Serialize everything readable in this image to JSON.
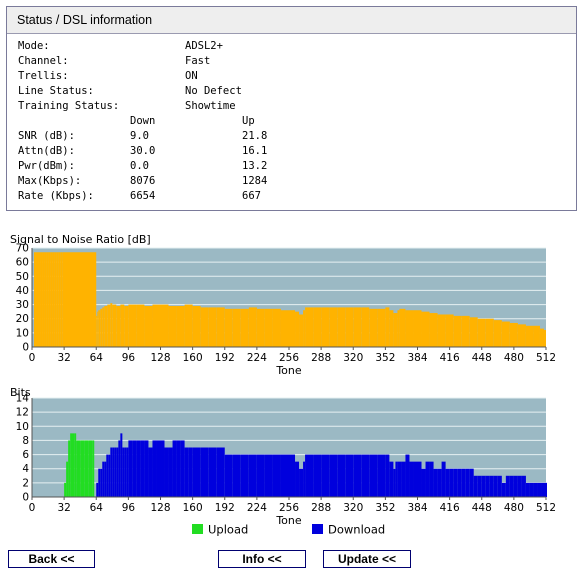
{
  "panel": {
    "title": "Status / DSL information",
    "line_info": [
      {
        "label": "Mode:",
        "value": "ADSL2+"
      },
      {
        "label": "Channel:",
        "value": "Fast"
      },
      {
        "label": "Trellis:",
        "value": "ON"
      },
      {
        "label": "Line Status:",
        "value": "No Defect"
      },
      {
        "label": "Training Status:",
        "value": "Showtime"
      }
    ],
    "columns": {
      "down": "Down",
      "up": "Up"
    },
    "metrics": [
      {
        "label": "SNR (dB):",
        "down": "9.0",
        "up": "21.8"
      },
      {
        "label": "Attn(dB):",
        "down": "30.0",
        "up": "16.1"
      },
      {
        "label": "Pwr(dBm):",
        "down": "0.0",
        "up": "13.2"
      },
      {
        "label": "Max(Kbps):",
        "down": "8076",
        "up": "1284"
      },
      {
        "label": "Rate (Kbps):",
        "down": "6654",
        "up": "667"
      }
    ]
  },
  "chart_data": [
    {
      "type": "bar",
      "title": "Signal to Noise Ratio [dB]",
      "xlabel": "Tone",
      "ylabel": "",
      "xlim": [
        0,
        512
      ],
      "ylim": [
        0,
        70
      ],
      "x_ticks": [
        "0",
        "32",
        "64",
        "96",
        "128",
        "160",
        "192",
        "224",
        "256",
        "288",
        "320",
        "352",
        "384",
        "416",
        "448",
        "480",
        "512"
      ],
      "y_ticks": [
        "0",
        "10",
        "20",
        "30",
        "40",
        "50",
        "60",
        "70"
      ],
      "grid": true,
      "colors": {
        "plot_bg": "#9bb9c4",
        "grid": "#e6f0f2",
        "bars": "#ffb300"
      },
      "series": [
        {
          "values": [
            [
              2,
              67
            ],
            [
              4,
              67
            ],
            [
              6,
              67
            ],
            [
              8,
              67
            ],
            [
              10,
              67
            ],
            [
              12,
              67
            ],
            [
              14,
              67
            ],
            [
              16,
              67
            ],
            [
              18,
              67
            ],
            [
              20,
              67
            ],
            [
              22,
              67
            ],
            [
              24,
              67
            ],
            [
              26,
              67
            ],
            [
              28,
              67
            ],
            [
              30,
              67
            ],
            [
              64,
              22
            ],
            [
              65,
              25
            ],
            [
              66,
              26
            ],
            [
              68,
              27
            ],
            [
              70,
              28
            ],
            [
              72,
              29
            ],
            [
              75,
              30
            ],
            [
              78,
              31
            ],
            [
              80,
              30
            ],
            [
              84,
              29
            ],
            [
              88,
              30
            ],
            [
              92,
              29
            ],
            [
              96,
              30
            ],
            [
              104,
              30
            ],
            [
              112,
              29
            ],
            [
              120,
              30
            ],
            [
              128,
              30
            ],
            [
              136,
              29
            ],
            [
              144,
              29
            ],
            [
              152,
              30
            ],
            [
              160,
              29
            ],
            [
              168,
              28
            ],
            [
              176,
              28
            ],
            [
              184,
              28
            ],
            [
              192,
              27
            ],
            [
              200,
              27
            ],
            [
              208,
              27
            ],
            [
              216,
              28
            ],
            [
              224,
              27
            ],
            [
              232,
              27
            ],
            [
              240,
              27
            ],
            [
              248,
              26
            ],
            [
              256,
              26
            ],
            [
              262,
              25
            ],
            [
              266,
              23
            ],
            [
              270,
              26
            ],
            [
              272,
              28
            ],
            [
              280,
              28
            ],
            [
              288,
              28
            ],
            [
              296,
              28
            ],
            [
              304,
              28
            ],
            [
              312,
              28
            ],
            [
              320,
              28
            ],
            [
              328,
              28
            ],
            [
              336,
              27
            ],
            [
              344,
              27
            ],
            [
              352,
              28
            ],
            [
              356,
              26
            ],
            [
              360,
              24
            ],
            [
              364,
              26
            ],
            [
              366,
              27
            ],
            [
              372,
              26
            ],
            [
              380,
              26
            ],
            [
              388,
              25
            ],
            [
              396,
              24
            ],
            [
              404,
              23
            ],
            [
              412,
              23
            ],
            [
              420,
              22
            ],
            [
              428,
              22
            ],
            [
              436,
              21
            ],
            [
              444,
              20
            ],
            [
              452,
              20
            ],
            [
              460,
              19
            ],
            [
              468,
              18
            ],
            [
              476,
              17
            ],
            [
              484,
              16
            ],
            [
              492,
              15
            ],
            [
              500,
              15
            ],
            [
              506,
              13
            ],
            [
              510,
              12
            ]
          ]
        }
      ]
    },
    {
      "type": "bar",
      "title": "Bits",
      "xlabel": "Tone",
      "ylabel": "",
      "xlim": [
        0,
        512
      ],
      "ylim": [
        0,
        14
      ],
      "x_ticks": [
        "0",
        "32",
        "64",
        "96",
        "128",
        "160",
        "192",
        "224",
        "256",
        "288",
        "320",
        "352",
        "384",
        "416",
        "448",
        "480",
        "512"
      ],
      "y_ticks": [
        "0",
        "2",
        "4",
        "6",
        "8",
        "10",
        "12",
        "14"
      ],
      "grid": true,
      "legend": "bottom",
      "colors": {
        "plot_bg": "#9bb9c4",
        "grid": "#e6f0f2"
      },
      "series": [
        {
          "name": "Upload",
          "color": "#22dd22",
          "values": [
            [
              30,
              0
            ],
            [
              32,
              2
            ],
            [
              34,
              5
            ],
            [
              36,
              8
            ],
            [
              38,
              9
            ],
            [
              42,
              9
            ],
            [
              44,
              8
            ],
            [
              48,
              8
            ],
            [
              52,
              8
            ],
            [
              56,
              8
            ],
            [
              60,
              8
            ],
            [
              62,
              0
            ]
          ]
        },
        {
          "name": "Download",
          "color": "#0000dd",
          "values": [
            [
              64,
              2
            ],
            [
              66,
              4
            ],
            [
              68,
              4
            ],
            [
              70,
              5
            ],
            [
              72,
              5
            ],
            [
              74,
              6
            ],
            [
              76,
              6
            ],
            [
              78,
              7
            ],
            [
              80,
              7
            ],
            [
              82,
              7
            ],
            [
              84,
              7
            ],
            [
              86,
              8
            ],
            [
              88,
              9
            ],
            [
              90,
              7
            ],
            [
              92,
              7
            ],
            [
              94,
              7
            ],
            [
              96,
              8
            ],
            [
              100,
              8
            ],
            [
              104,
              8
            ],
            [
              108,
              8
            ],
            [
              112,
              8
            ],
            [
              116,
              7
            ],
            [
              120,
              8
            ],
            [
              124,
              8
            ],
            [
              128,
              8
            ],
            [
              132,
              7
            ],
            [
              136,
              7
            ],
            [
              140,
              8
            ],
            [
              144,
              8
            ],
            [
              148,
              8
            ],
            [
              152,
              7
            ],
            [
              156,
              7
            ],
            [
              160,
              7
            ],
            [
              168,
              7
            ],
            [
              176,
              7
            ],
            [
              184,
              7
            ],
            [
              192,
              6
            ],
            [
              200,
              6
            ],
            [
              208,
              6
            ],
            [
              216,
              6
            ],
            [
              224,
              6
            ],
            [
              232,
              6
            ],
            [
              240,
              6
            ],
            [
              248,
              6
            ],
            [
              256,
              6
            ],
            [
              262,
              5
            ],
            [
              266,
              4
            ],
            [
              270,
              5
            ],
            [
              272,
              6
            ],
            [
              280,
              6
            ],
            [
              288,
              6
            ],
            [
              296,
              6
            ],
            [
              304,
              6
            ],
            [
              312,
              6
            ],
            [
              320,
              6
            ],
            [
              328,
              6
            ],
            [
              336,
              6
            ],
            [
              344,
              6
            ],
            [
              352,
              6
            ],
            [
              356,
              5
            ],
            [
              360,
              4
            ],
            [
              362,
              5
            ],
            [
              364,
              5
            ],
            [
              368,
              5
            ],
            [
              372,
              6
            ],
            [
              376,
              5
            ],
            [
              380,
              5
            ],
            [
              384,
              5
            ],
            [
              388,
              4
            ],
            [
              392,
              5
            ],
            [
              396,
              5
            ],
            [
              400,
              4
            ],
            [
              404,
              4
            ],
            [
              408,
              5
            ],
            [
              412,
              4
            ],
            [
              416,
              4
            ],
            [
              420,
              4
            ],
            [
              424,
              4
            ],
            [
              428,
              4
            ],
            [
              432,
              4
            ],
            [
              436,
              4
            ],
            [
              440,
              3
            ],
            [
              444,
              3
            ],
            [
              448,
              3
            ],
            [
              452,
              3
            ],
            [
              456,
              3
            ],
            [
              460,
              3
            ],
            [
              464,
              3
            ],
            [
              468,
              2
            ],
            [
              472,
              3
            ],
            [
              476,
              3
            ],
            [
              480,
              3
            ],
            [
              484,
              3
            ],
            [
              488,
              3
            ],
            [
              492,
              2
            ],
            [
              496,
              2
            ],
            [
              500,
              2
            ],
            [
              504,
              2
            ],
            [
              508,
              2
            ],
            [
              512,
              2
            ]
          ]
        }
      ]
    }
  ],
  "buttons": {
    "back": "Back <<",
    "info": "Info <<",
    "update": "Update <<"
  }
}
